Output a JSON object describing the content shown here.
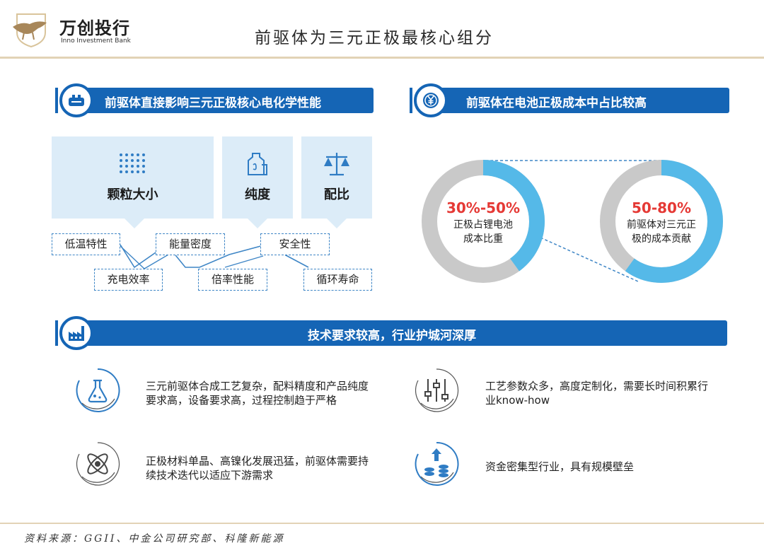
{
  "header": {
    "brand_cn": "万创投行",
    "brand_en": "Inno Investment Bank",
    "title": "前驱体为三元正极最核心组分"
  },
  "section_left": {
    "title": "前驱体直接影响三元正极核心电化学性能",
    "properties": [
      {
        "label": "颗粒大小",
        "icon": "dots-grid-icon"
      },
      {
        "label": "纯度",
        "icon": "bottle-icon"
      },
      {
        "label": "配比",
        "icon": "scale-icon"
      }
    ],
    "tags_top": [
      "低温特性",
      "能量密度",
      "安全性"
    ],
    "tags_bottom": [
      "充电效率",
      "倍率性能",
      "循环寿命"
    ]
  },
  "section_right": {
    "title": "前驱体在电池正极成本中占比较高",
    "donuts": [
      {
        "big": "30%-50%",
        "line1": "正极占锂电池",
        "line2": "成本比重",
        "highlight_fraction": 0.4
      },
      {
        "big": "50-80%",
        "line1": "前驱体对三元正",
        "line2": "极的成本贡献",
        "highlight_fraction": 0.6
      }
    ],
    "colors": {
      "highlight": "#55b9e8",
      "base": "#c9c9c9",
      "accent": "#e53935"
    }
  },
  "section_bottom": {
    "title": "技术要求较高，行业护城河深厚",
    "features": [
      {
        "icon": "flask-icon",
        "line1": "三元前驱体合成工艺复杂，配料精度和产品纯度",
        "line2": "要求高，设备要求高，过程控制趋于严格"
      },
      {
        "icon": "sliders-icon",
        "line1": "工艺参数众多，高度定制化，需要长时间积累行",
        "line2": "业know-how"
      },
      {
        "icon": "atom-icon",
        "line1": "正极材料单晶、高镍化发展迅猛，前驱体需要持",
        "line2": "续技术迭代以适应下游需求"
      },
      {
        "icon": "coins-up-icon",
        "line1": "资金密集型行业，具有规模壁垒",
        "line2": ""
      }
    ]
  },
  "footer": {
    "source": "资料来源：GGII、中金公司研究部、科隆新能源"
  }
}
